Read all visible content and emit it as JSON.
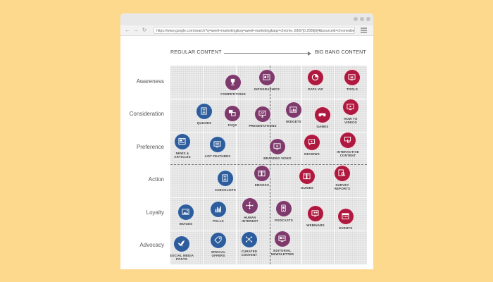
{
  "browser": {
    "url": "https://www.google.com/search?q=aweil+marketing&oq=aweil+marketing&aqs=chrome..69i57j0.2589j0j4&sourceid=chrome&ie=UTF-8&sxsrf=ALeKk03..."
  },
  "axis": {
    "left_label": "REGULAR CONTENT",
    "right_label": "BIG BANG CONTENT"
  },
  "rows": [
    "Awareness",
    "Consideration",
    "Preference",
    "Action",
    "Loyalty",
    "Advocacy"
  ],
  "colors": {
    "page_background": "#fdd98e",
    "blue": "#2d5d9c",
    "purple": "#7e3a6c",
    "red": "#b0193f"
  },
  "items": [
    {
      "label": "COMPETITIONS",
      "color": "purple",
      "icon": "trophy-icon"
    },
    {
      "label": "INFOGRAPHICS",
      "color": "purple",
      "icon": "infographic-icon"
    },
    {
      "label": "DATA VIZ",
      "color": "red",
      "icon": "pie-chart-icon"
    },
    {
      "label": "TOOLS",
      "color": "red",
      "icon": "tools-icon"
    },
    {
      "label": "QUIZZES",
      "color": "blue",
      "icon": "checklist-icon"
    },
    {
      "label": "FAQS",
      "color": "purple",
      "icon": "qa-icon"
    },
    {
      "label": "PRESENTATIONS",
      "color": "purple",
      "icon": "presentation-icon"
    },
    {
      "label": "WIDGETS",
      "color": "purple",
      "icon": "widget-icon"
    },
    {
      "label": "GAMES",
      "color": "red",
      "icon": "gamepad-icon"
    },
    {
      "label": "HOW TO\nVIDEOS",
      "color": "red",
      "icon": "video-icon"
    },
    {
      "label": "NEWS &\nARTICLES",
      "color": "blue",
      "icon": "newspaper-icon"
    },
    {
      "label": "LIST FEATURES",
      "color": "blue",
      "icon": "list-icon"
    },
    {
      "label": "BRANDED VIDEO",
      "color": "purple",
      "icon": "video-icon"
    },
    {
      "label": "REVIEWS",
      "color": "red",
      "icon": "chat-icon"
    },
    {
      "label": "INTERACTIVE\nCONTENT",
      "color": "red",
      "icon": "touch-icon"
    },
    {
      "label": "CHECKLISTS",
      "color": "blue",
      "icon": "checklist-icon"
    },
    {
      "label": "EBOOKS",
      "color": "purple",
      "icon": "book-icon"
    },
    {
      "label": "GUIDES",
      "color": "red",
      "icon": "book-icon"
    },
    {
      "label": "SURVEY\nREPORTS",
      "color": "red",
      "icon": "magnifier-icon"
    },
    {
      "label": "IMAGES",
      "color": "blue",
      "icon": "image-icon"
    },
    {
      "label": "POLLS",
      "color": "blue",
      "icon": "bar-chart-icon"
    },
    {
      "label": "HUMAN\nINTEREST",
      "color": "purple",
      "icon": "people-network-icon"
    },
    {
      "label": "PODCASTS",
      "color": "purple",
      "icon": "phone-icon"
    },
    {
      "label": "WEBINARS",
      "color": "red",
      "icon": "monitor-icon"
    },
    {
      "label": "EVENTS",
      "color": "red",
      "icon": "calendar-icon"
    },
    {
      "label": "SOCIAL MEDIA\nPOSTS",
      "color": "blue",
      "icon": "bird-icon"
    },
    {
      "label": "SPECIAL\nOFFERS",
      "color": "blue",
      "icon": "tag-icon"
    },
    {
      "label": "CURATED\nCONTENT",
      "color": "blue",
      "icon": "network-icon"
    },
    {
      "label": "EDITORIAL\nNEWSLETTER",
      "color": "purple",
      "icon": "newsletter-icon"
    }
  ]
}
